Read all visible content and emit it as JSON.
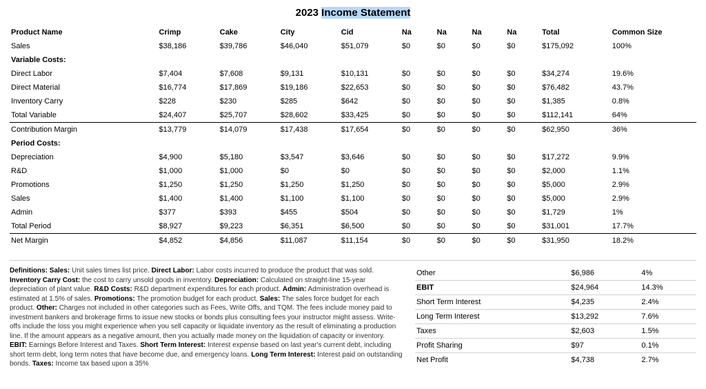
{
  "title_prefix": "2023 ",
  "title_highlight": "Income Statement",
  "columns": [
    "Product Name",
    "Crimp",
    "Cake",
    "City",
    "Cid",
    "Na",
    "Na",
    "Na",
    "Na",
    "Total",
    "Common Size"
  ],
  "rows": [
    {
      "type": "data",
      "cells": [
        "Sales",
        "$38,186",
        "$39,786",
        "$46,040",
        "$51,079",
        "$0",
        "$0",
        "$0",
        "$0",
        "$175,092",
        "100%"
      ]
    },
    {
      "type": "section",
      "cells": [
        "Variable Costs:",
        "",
        "",
        "",
        "",
        "",
        "",
        "",
        "",
        "",
        ""
      ]
    },
    {
      "type": "data",
      "cells": [
        "Direct Labor",
        "$7,404",
        "$7,608",
        "$9,131",
        "$10,131",
        "$0",
        "$0",
        "$0",
        "$0",
        "$34,274",
        "19.6%"
      ]
    },
    {
      "type": "data",
      "cells": [
        "Direct Material",
        "$16,774",
        "$17,869",
        "$19,186",
        "$22,653",
        "$0",
        "$0",
        "$0",
        "$0",
        "$76,482",
        "43.7%"
      ]
    },
    {
      "type": "data",
      "cells": [
        "Inventory Carry",
        "$228",
        "$230",
        "$285",
        "$642",
        "$0",
        "$0",
        "$0",
        "$0",
        "$1,385",
        "0.8%"
      ]
    },
    {
      "type": "data",
      "cells": [
        "Total Variable",
        "$24,407",
        "$25,707",
        "$28,602",
        "$33,425",
        "$0",
        "$0",
        "$0",
        "$0",
        "$112,141",
        "64%"
      ]
    },
    {
      "type": "data",
      "hr": true,
      "cells": [
        "Contribution Margin",
        "$13,779",
        "$14,079",
        "$17,438",
        "$17,654",
        "$0",
        "$0",
        "$0",
        "$0",
        "$62,950",
        "36%"
      ]
    },
    {
      "type": "section",
      "cells": [
        "Period Costs:",
        "",
        "",
        "",
        "",
        "",
        "",
        "",
        "",
        "",
        ""
      ]
    },
    {
      "type": "data",
      "cells": [
        "Depreciation",
        "$4,900",
        "$5,180",
        "$3,547",
        "$3,646",
        "$0",
        "$0",
        "$0",
        "$0",
        "$17,272",
        "9.9%"
      ]
    },
    {
      "type": "data",
      "cells": [
        "R&D",
        "$1,000",
        "$1,000",
        "$0",
        "$0",
        "$0",
        "$0",
        "$0",
        "$0",
        "$2,000",
        "1.1%"
      ]
    },
    {
      "type": "data",
      "cells": [
        "Promotions",
        "$1,250",
        "$1,250",
        "$1,250",
        "$1,250",
        "$0",
        "$0",
        "$0",
        "$0",
        "$5,000",
        "2.9%"
      ]
    },
    {
      "type": "data",
      "cells": [
        "Sales",
        "$1,400",
        "$1,400",
        "$1,100",
        "$1,100",
        "$0",
        "$0",
        "$0",
        "$0",
        "$5,000",
        "2.9%"
      ]
    },
    {
      "type": "data",
      "cells": [
        "Admin",
        "$377",
        "$393",
        "$455",
        "$504",
        "$0",
        "$0",
        "$0",
        "$0",
        "$1,729",
        "1%"
      ]
    },
    {
      "type": "data",
      "cells": [
        "Total Period",
        "$8,927",
        "$9,223",
        "$6,351",
        "$6,500",
        "$0",
        "$0",
        "$0",
        "$0",
        "$31,001",
        "17.7%"
      ]
    },
    {
      "type": "data",
      "hr": true,
      "cells": [
        "Net Margin",
        "$4,852",
        "$4,856",
        "$11,087",
        "$11,154",
        "$0",
        "$0",
        "$0",
        "$0",
        "$31,950",
        "18.2%"
      ]
    }
  ],
  "definitions": [
    {
      "term": "Definitions: Sales:",
      "text": " Unit sales times list price. "
    },
    {
      "term": "Direct Labor:",
      "text": " Labor costs incurred to produce the product that was sold. "
    },
    {
      "term": "Inventory Carry Cost:",
      "text": " the cost to carry unsold goods in inventory. "
    },
    {
      "term": "Depreciation:",
      "text": " Calculated on straight-line 15-year depreciation of plant value. "
    },
    {
      "term": "R&D Costs:",
      "text": " R&D department expenditures for each product. "
    },
    {
      "term": "Admin:",
      "text": " Administration overhead is estimated at 1.5% of sales. "
    },
    {
      "term": "Promotions:",
      "text": " The promotion budget for each product. "
    },
    {
      "term": "Sales:",
      "text": " The sales force budget for each product. "
    },
    {
      "term": "Other:",
      "text": " Charges not included in other categories such as Fees, Write Offs, and TQM. The fees include money paid to investment bankers and brokerage firms to issue new stocks or bonds plus consulting fees your instructor might assess. Write-offs include the loss you might experience when you sell capacity or liquidate inventory as the result of eliminating a production line. If the amount appears as a negative amount, then you actually made money on the liquidation of capacity or inventory. "
    },
    {
      "term": "EBIT:",
      "text": " Earnings Before Interest and Taxes. "
    },
    {
      "term": "Short Term Interest:",
      "text": " Interest expense based on last year's current debt, including short term debt, long term notes that have become due, and emergency loans. "
    },
    {
      "term": "Long Term Interest:",
      "text": " Interest paid on outstanding bonds. "
    },
    {
      "term": "Taxes:",
      "text": " Income tax based upon a 35%"
    }
  ],
  "lower_rows": [
    {
      "label": "Other",
      "value": "$6,986",
      "pct": "4%",
      "bold": false
    },
    {
      "label": "EBIT",
      "value": "$24,964",
      "pct": "14.3%",
      "bold": true
    },
    {
      "label": "Short Term Interest",
      "value": "$4,235",
      "pct": "2.4%",
      "bold": false
    },
    {
      "label": "Long Term Interest",
      "value": "$13,292",
      "pct": "7.6%",
      "bold": false
    },
    {
      "label": "Taxes",
      "value": "$2,603",
      "pct": "1.5%",
      "bold": false
    },
    {
      "label": "Profit Sharing",
      "value": "$97",
      "pct": "0.1%",
      "bold": false
    },
    {
      "label": "Net Profit",
      "value": "$4,738",
      "pct": "2.7%",
      "bold": false
    }
  ]
}
